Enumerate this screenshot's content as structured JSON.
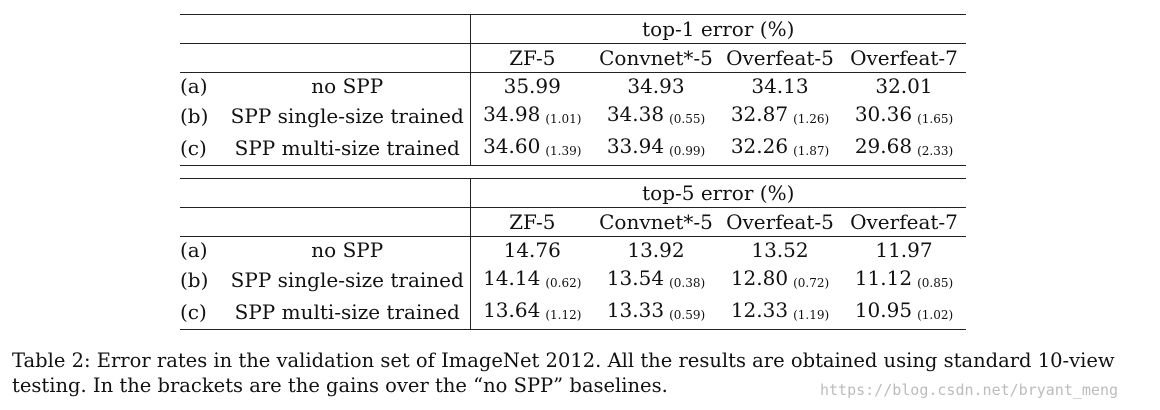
{
  "tables": [
    {
      "title": "top-1 error (%)",
      "columns": [
        "ZF-5",
        "Convnet*-5",
        "Overfeat-5",
        "Overfeat-7"
      ],
      "rows": [
        {
          "id": "(a)",
          "method": "no SPP",
          "values": [
            "35.99",
            "34.93",
            "34.13",
            "32.01"
          ],
          "gains": [
            "",
            "",
            "",
            ""
          ]
        },
        {
          "id": "(b)",
          "method": "SPP single-size trained",
          "values": [
            "34.98",
            "34.38",
            "32.87",
            "30.36"
          ],
          "gains": [
            "(1.01)",
            "(0.55)",
            "(1.26)",
            "(1.65)"
          ]
        },
        {
          "id": "(c)",
          "method": "SPP multi-size trained",
          "values": [
            "34.60",
            "33.94",
            "32.26",
            "29.68"
          ],
          "gains": [
            "(1.39)",
            "(0.99)",
            "(1.87)",
            "(2.33)"
          ]
        }
      ]
    },
    {
      "title": "top-5 error (%)",
      "columns": [
        "ZF-5",
        "Convnet*-5",
        "Overfeat-5",
        "Overfeat-7"
      ],
      "rows": [
        {
          "id": "(a)",
          "method": "no SPP",
          "values": [
            "14.76",
            "13.92",
            "13.52",
            "11.97"
          ],
          "gains": [
            "",
            "",
            "",
            ""
          ]
        },
        {
          "id": "(b)",
          "method": "SPP single-size trained",
          "values": [
            "14.14",
            "13.54",
            "12.80",
            "11.12"
          ],
          "gains": [
            "(0.62)",
            "(0.38)",
            "(0.72)",
            "(0.85)"
          ]
        },
        {
          "id": "(c)",
          "method": "SPP multi-size trained",
          "values": [
            "13.64",
            "13.33",
            "12.33",
            "10.95"
          ],
          "gains": [
            "(1.12)",
            "(0.59)",
            "(1.19)",
            "(1.02)"
          ]
        }
      ]
    }
  ],
  "caption": {
    "line1": "Table 2: Error rates in the validation set of ImageNet 2012. All the results are obtained using standard 10-view",
    "line2": "testing. In the brackets are the gains over the “no SPP” baselines."
  },
  "watermark": "https://blog.csdn.net/bryant_meng"
}
